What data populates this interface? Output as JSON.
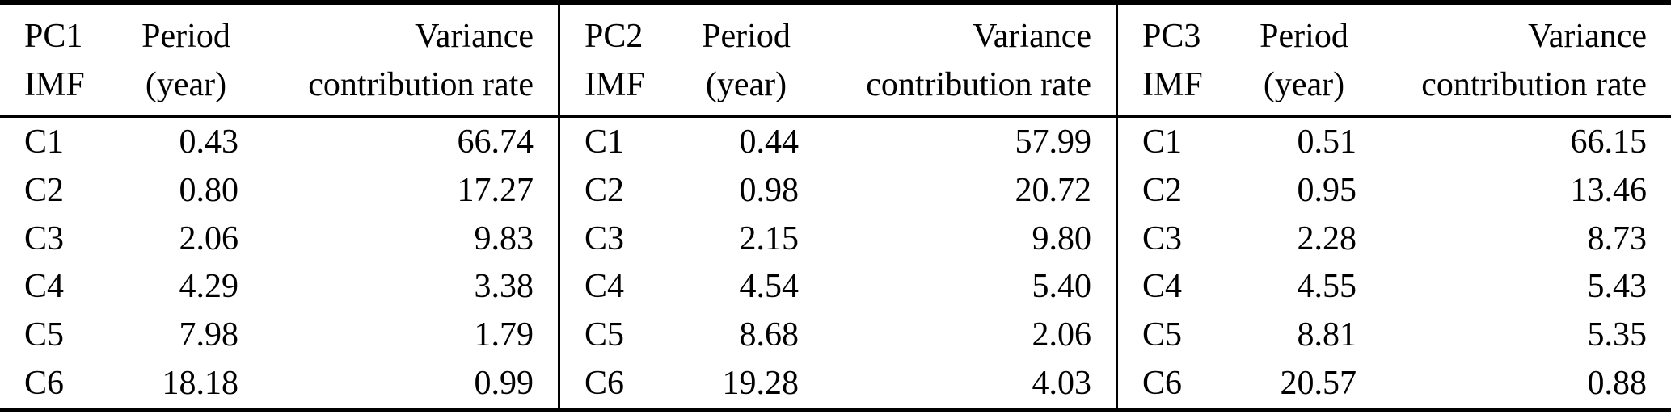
{
  "panels": [
    {
      "name": "PC1",
      "header": {
        "imf_line1": "PC1",
        "imf_line2": "IMF",
        "period_line1": "Period",
        "period_line2": "(year)",
        "variance_line1": "Variance",
        "variance_line2": "contribution rate"
      },
      "rows": [
        {
          "imf": "C1",
          "period": "0.43",
          "variance": "66.74"
        },
        {
          "imf": "C2",
          "period": "0.80",
          "variance": "17.27"
        },
        {
          "imf": "C3",
          "period": "2.06",
          "variance": "9.83"
        },
        {
          "imf": "C4",
          "period": "4.29",
          "variance": "3.38"
        },
        {
          "imf": "C5",
          "period": "7.98",
          "variance": "1.79"
        },
        {
          "imf": "C6",
          "period": "18.18",
          "variance": "0.99"
        }
      ]
    },
    {
      "name": "PC2",
      "header": {
        "imf_line1": "PC2",
        "imf_line2": "IMF",
        "period_line1": "Period",
        "period_line2": "(year)",
        "variance_line1": "Variance",
        "variance_line2": "contribution rate"
      },
      "rows": [
        {
          "imf": "C1",
          "period": "0.44",
          "variance": "57.99"
        },
        {
          "imf": "C2",
          "period": "0.98",
          "variance": "20.72"
        },
        {
          "imf": "C3",
          "period": "2.15",
          "variance": "9.80"
        },
        {
          "imf": "C4",
          "period": "4.54",
          "variance": "5.40"
        },
        {
          "imf": "C5",
          "period": "8.68",
          "variance": "2.06"
        },
        {
          "imf": "C6",
          "period": "19.28",
          "variance": "4.03"
        }
      ]
    },
    {
      "name": "PC3",
      "header": {
        "imf_line1": "PC3",
        "imf_line2": "IMF",
        "period_line1": "Period",
        "period_line2": "(year)",
        "variance_line1": "Variance",
        "variance_line2": "contribution rate"
      },
      "rows": [
        {
          "imf": "C1",
          "period": "0.51",
          "variance": "66.15"
        },
        {
          "imf": "C2",
          "period": "0.95",
          "variance": "13.46"
        },
        {
          "imf": "C3",
          "period": "2.28",
          "variance": "8.73"
        },
        {
          "imf": "C4",
          "period": "4.55",
          "variance": "5.43"
        },
        {
          "imf": "C5",
          "period": "8.81",
          "variance": "5.35"
        },
        {
          "imf": "C6",
          "period": "20.57",
          "variance": "0.88"
        }
      ]
    }
  ],
  "colors": {
    "text": "#000000",
    "background": "#ffffff",
    "rule": "#000000"
  }
}
